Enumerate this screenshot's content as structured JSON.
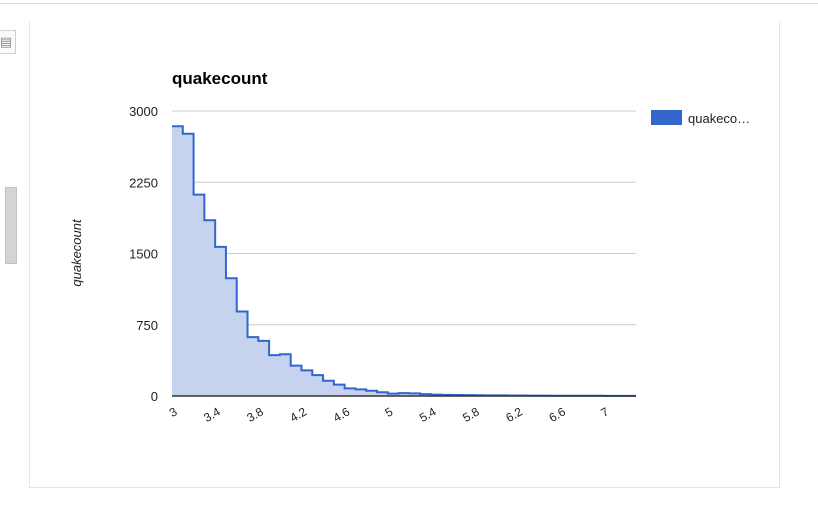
{
  "panel": {
    "toggle_icon": "list-icon"
  },
  "chart_data": {
    "type": "area",
    "title": "quakecount",
    "xlabel": "",
    "ylabel": "quakecount",
    "interpolation": "stepped",
    "x_ticks": [
      "3",
      "3.4",
      "3.8",
      "4.2",
      "4.6",
      "5",
      "5.4",
      "5.8",
      "6.2",
      "6.6",
      "7"
    ],
    "y_ticks": [
      "3000",
      "2250",
      "1500",
      "750",
      "0"
    ],
    "ylim": [
      0,
      3000
    ],
    "xlim": [
      3,
      7.3
    ],
    "grid": true,
    "legend_position": "right",
    "series": [
      {
        "name": "quakecount",
        "legend_label": "quakeco…",
        "color": "#3366cc",
        "fill_color": "#c6d3ef",
        "x": [
          3,
          3.1,
          3.2,
          3.3,
          3.4,
          3.5,
          3.6,
          3.7,
          3.8,
          3.9,
          4,
          4.1,
          4.2,
          4.3,
          4.4,
          4.5,
          4.6,
          4.7,
          4.8,
          4.9,
          5,
          5.1,
          5.2,
          5.3,
          5.4,
          5.5,
          5.6,
          5.7,
          5.8,
          5.9,
          6,
          6.1,
          6.2,
          6.3,
          6.4,
          6.5,
          6.6,
          6.7,
          6.8,
          6.9,
          7,
          7.1,
          7.2
        ],
        "values": [
          2840,
          2760,
          2120,
          1850,
          1570,
          1240,
          890,
          620,
          580,
          430,
          440,
          320,
          270,
          220,
          160,
          120,
          80,
          70,
          55,
          40,
          25,
          30,
          28,
          20,
          15,
          12,
          10,
          9,
          8,
          7,
          6,
          5,
          5,
          4,
          4,
          3,
          3,
          2,
          2,
          2,
          1,
          1,
          1
        ]
      }
    ]
  }
}
